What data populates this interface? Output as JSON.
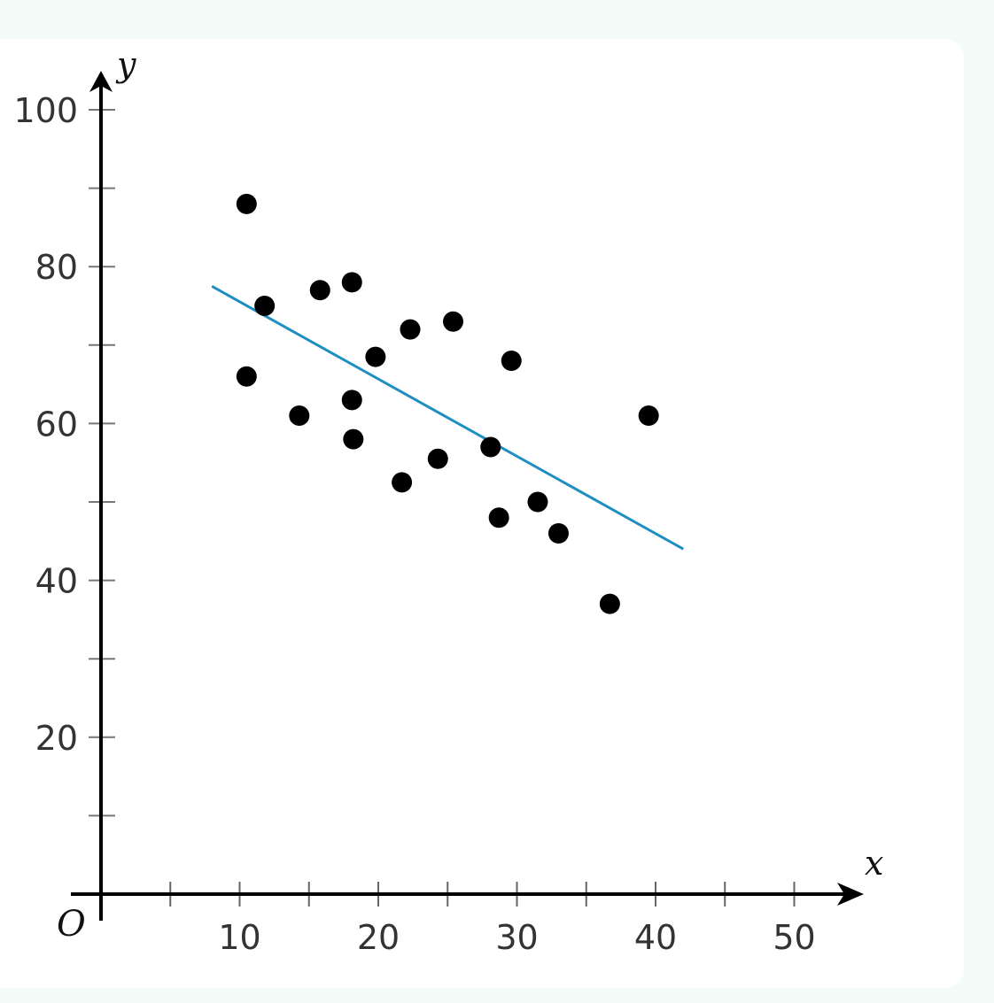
{
  "chart_data": {
    "type": "scatter",
    "title": "",
    "xlabel": "x",
    "ylabel": "y",
    "origin_label": "O",
    "xlim": [
      0,
      55
    ],
    "ylim": [
      0,
      104
    ],
    "x_ticks": [
      10,
      20,
      30,
      40,
      50
    ],
    "x_minor_ticks": [
      5,
      15,
      25,
      35,
      45
    ],
    "y_ticks": [
      20,
      40,
      60,
      80,
      100
    ],
    "y_minor_ticks": [
      10,
      30,
      50,
      70,
      90
    ],
    "grid": false,
    "points": [
      {
        "x": 10.5,
        "y": 88
      },
      {
        "x": 10.5,
        "y": 66
      },
      {
        "x": 11.8,
        "y": 75
      },
      {
        "x": 14.3,
        "y": 61
      },
      {
        "x": 15.8,
        "y": 77
      },
      {
        "x": 18.1,
        "y": 78
      },
      {
        "x": 18.1,
        "y": 63
      },
      {
        "x": 18.2,
        "y": 58
      },
      {
        "x": 19.8,
        "y": 68.5
      },
      {
        "x": 21.7,
        "y": 52.5
      },
      {
        "x": 22.3,
        "y": 72
      },
      {
        "x": 24.3,
        "y": 55.5
      },
      {
        "x": 25.4,
        "y": 73
      },
      {
        "x": 28.1,
        "y": 57
      },
      {
        "x": 28.7,
        "y": 48
      },
      {
        "x": 29.6,
        "y": 68
      },
      {
        "x": 31.5,
        "y": 50
      },
      {
        "x": 33.0,
        "y": 46
      },
      {
        "x": 36.7,
        "y": 37
      },
      {
        "x": 39.5,
        "y": 61
      }
    ],
    "trend_line": {
      "x": [
        8,
        42
      ],
      "y": [
        77.5,
        44
      ]
    },
    "colors": {
      "points": "#000000",
      "trend_line": "#1f8fc2",
      "axes": "#000000"
    }
  }
}
